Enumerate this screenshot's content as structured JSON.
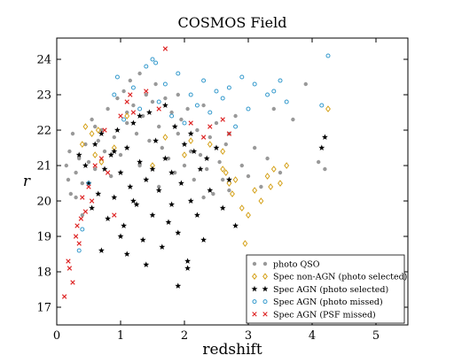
{
  "chart_data": {
    "type": "scatter",
    "title": "COSMOS Field",
    "xlabel": "redshift",
    "ylabel": "r",
    "xlim": [
      0,
      5.5
    ],
    "ylim": [
      16.5,
      24.6
    ],
    "xticks": [
      "0",
      "1",
      "2",
      "3",
      "4",
      "5"
    ],
    "yticks": [
      "17",
      "18",
      "19",
      "20",
      "21",
      "22",
      "23",
      "24"
    ],
    "grid": false,
    "legend_position": "bottom-right",
    "series": [
      {
        "name": "photo QSO",
        "marker": "dot",
        "color": "#999999",
        "points": [
          [
            0.15,
            21.0
          ],
          [
            0.18,
            20.6
          ],
          [
            0.2,
            21.4
          ],
          [
            0.22,
            20.2
          ],
          [
            0.25,
            21.9
          ],
          [
            0.3,
            20.8
          ],
          [
            0.35,
            21.2
          ],
          [
            0.4,
            20.5
          ],
          [
            0.45,
            21.6
          ],
          [
            0.5,
            21.1
          ],
          [
            0.55,
            22.3
          ],
          [
            0.6,
            20.9
          ],
          [
            0.65,
            21.7
          ],
          [
            0.7,
            22.0
          ],
          [
            0.75,
            21.4
          ],
          [
            0.8,
            22.6
          ],
          [
            0.85,
            20.7
          ],
          [
            0.9,
            21.8
          ],
          [
            0.95,
            22.9
          ],
          [
            1.0,
            21.3
          ],
          [
            1.05,
            23.1
          ],
          [
            1.1,
            22.2
          ],
          [
            1.15,
            23.4
          ],
          [
            1.2,
            22.7
          ],
          [
            1.25,
            21.9
          ],
          [
            1.3,
            23.6
          ],
          [
            1.35,
            22.4
          ],
          [
            1.4,
            23.0
          ],
          [
            1.45,
            21.7
          ],
          [
            1.5,
            22.8
          ],
          [
            1.55,
            23.3
          ],
          [
            1.6,
            22.1
          ],
          [
            1.65,
            21.5
          ],
          [
            1.7,
            22.9
          ],
          [
            1.75,
            21.2
          ],
          [
            1.8,
            22.5
          ],
          [
            1.85,
            20.8
          ],
          [
            1.9,
            21.9
          ],
          [
            1.95,
            22.3
          ],
          [
            2.0,
            21.0
          ],
          [
            2.05,
            22.6
          ],
          [
            2.1,
            21.4
          ],
          [
            2.15,
            20.6
          ],
          [
            2.2,
            22.0
          ],
          [
            2.25,
            21.3
          ],
          [
            2.3,
            22.7
          ],
          [
            2.35,
            20.9
          ],
          [
            2.4,
            21.8
          ],
          [
            2.45,
            20.2
          ],
          [
            2.5,
            22.2
          ],
          [
            2.55,
            21.1
          ],
          [
            2.6,
            20.6
          ],
          [
            2.65,
            21.6
          ],
          [
            2.7,
            20.3
          ],
          [
            2.8,
            22.4
          ],
          [
            2.9,
            21.0
          ],
          [
            3.0,
            20.7
          ],
          [
            3.1,
            21.5
          ],
          [
            3.2,
            20.4
          ],
          [
            3.3,
            21.2
          ],
          [
            3.5,
            20.8
          ],
          [
            3.7,
            22.3
          ],
          [
            3.9,
            23.3
          ],
          [
            4.1,
            21.1
          ],
          [
            4.2,
            20.9
          ],
          [
            0.3,
            20.1
          ],
          [
            0.4,
            19.6
          ],
          [
            0.6,
            22.1
          ],
          [
            1.1,
            22.5
          ],
          [
            1.3,
            21.0
          ],
          [
            1.6,
            20.4
          ],
          [
            1.9,
            23.0
          ],
          [
            2.3,
            20.1
          ],
          [
            2.7,
            21.9
          ],
          [
            3.4,
            22.6
          ]
        ]
      },
      {
        "name": "Spec non-AGN (photo selected)",
        "marker": "diamond",
        "color": "#d4a017",
        "points": [
          [
            0.4,
            21.6
          ],
          [
            0.45,
            22.1
          ],
          [
            0.55,
            21.9
          ],
          [
            0.6,
            21.3
          ],
          [
            0.65,
            22.0
          ],
          [
            0.7,
            21.1
          ],
          [
            0.9,
            21.5
          ],
          [
            1.1,
            22.4
          ],
          [
            1.5,
            21.0
          ],
          [
            1.7,
            21.8
          ],
          [
            2.0,
            21.3
          ],
          [
            2.1,
            21.7
          ],
          [
            2.4,
            21.6
          ],
          [
            2.6,
            21.4
          ],
          [
            2.6,
            20.9
          ],
          [
            2.65,
            20.8
          ],
          [
            2.7,
            20.5
          ],
          [
            2.75,
            20.2
          ],
          [
            2.8,
            20.6
          ],
          [
            2.9,
            19.8
          ],
          [
            2.95,
            18.8
          ],
          [
            3.0,
            19.6
          ],
          [
            3.1,
            20.3
          ],
          [
            3.2,
            20.0
          ],
          [
            3.3,
            20.7
          ],
          [
            3.35,
            20.4
          ],
          [
            3.4,
            20.9
          ],
          [
            3.5,
            20.5
          ],
          [
            3.6,
            21.0
          ],
          [
            4.25,
            22.6
          ]
        ]
      },
      {
        "name": "Spec AGN (photo selected)",
        "marker": "star",
        "color": "#000000",
        "points": [
          [
            0.35,
            21.3
          ],
          [
            0.45,
            21.0
          ],
          [
            0.5,
            20.5
          ],
          [
            0.55,
            19.8
          ],
          [
            0.6,
            21.6
          ],
          [
            0.65,
            20.2
          ],
          [
            0.7,
            21.9
          ],
          [
            0.75,
            20.9
          ],
          [
            0.8,
            19.5
          ],
          [
            0.85,
            21.3
          ],
          [
            0.9,
            20.1
          ],
          [
            0.95,
            22.0
          ],
          [
            1.0,
            20.8
          ],
          [
            1.05,
            19.3
          ],
          [
            1.1,
            21.5
          ],
          [
            1.1,
            18.5
          ],
          [
            1.15,
            20.4
          ],
          [
            1.2,
            22.2
          ],
          [
            1.25,
            19.9
          ],
          [
            1.3,
            21.1
          ],
          [
            1.35,
            18.9
          ],
          [
            1.4,
            20.6
          ],
          [
            1.45,
            22.5
          ],
          [
            1.5,
            19.6
          ],
          [
            1.55,
            21.7
          ],
          [
            1.6,
            20.3
          ],
          [
            1.65,
            18.7
          ],
          [
            1.7,
            21.2
          ],
          [
            1.75,
            19.4
          ],
          [
            1.8,
            20.8
          ],
          [
            1.85,
            22.1
          ],
          [
            1.9,
            19.1
          ],
          [
            1.95,
            20.5
          ],
          [
            2.0,
            21.6
          ],
          [
            2.05,
            18.3
          ],
          [
            2.1,
            20.0
          ],
          [
            2.15,
            21.4
          ],
          [
            2.2,
            19.6
          ],
          [
            2.25,
            20.9
          ],
          [
            2.3,
            18.9
          ],
          [
            2.4,
            20.3
          ],
          [
            2.5,
            21.5
          ],
          [
            2.6,
            19.8
          ],
          [
            2.7,
            20.6
          ],
          [
            2.8,
            19.3
          ],
          [
            0.9,
            21.4
          ],
          [
            1.2,
            20.0
          ],
          [
            1.5,
            20.9
          ],
          [
            1.8,
            19.9
          ],
          [
            2.1,
            21.9
          ],
          [
            1.3,
            22.4
          ],
          [
            1.7,
            22.7
          ],
          [
            1.4,
            18.2
          ],
          [
            1.9,
            17.6
          ],
          [
            2.05,
            18.1
          ],
          [
            0.7,
            18.6
          ],
          [
            4.15,
            21.5
          ],
          [
            4.2,
            21.8
          ],
          [
            2.35,
            21.2
          ],
          [
            1.0,
            19.0
          ]
        ]
      },
      {
        "name": "Spec AGN (photo missed)",
        "marker": "circle",
        "color": "#3399cc",
        "points": [
          [
            0.35,
            18.6
          ],
          [
            0.4,
            19.2
          ],
          [
            0.5,
            20.5
          ],
          [
            0.9,
            23.0
          ],
          [
            0.95,
            23.5
          ],
          [
            1.05,
            22.3
          ],
          [
            1.2,
            23.2
          ],
          [
            1.3,
            22.6
          ],
          [
            1.4,
            23.8
          ],
          [
            1.5,
            24.0
          ],
          [
            1.55,
            23.9
          ],
          [
            1.6,
            22.8
          ],
          [
            1.7,
            23.3
          ],
          [
            1.8,
            22.4
          ],
          [
            1.9,
            23.6
          ],
          [
            2.0,
            22.2
          ],
          [
            2.1,
            23.0
          ],
          [
            2.2,
            22.7
          ],
          [
            2.3,
            23.4
          ],
          [
            2.4,
            22.5
          ],
          [
            2.5,
            23.1
          ],
          [
            2.6,
            22.9
          ],
          [
            2.7,
            23.2
          ],
          [
            2.8,
            22.1
          ],
          [
            2.9,
            23.5
          ],
          [
            3.0,
            22.6
          ],
          [
            3.1,
            23.3
          ],
          [
            3.3,
            23.0
          ],
          [
            3.4,
            23.1
          ],
          [
            3.5,
            23.4
          ],
          [
            3.6,
            22.8
          ],
          [
            4.15,
            22.7
          ],
          [
            4.25,
            24.1
          ]
        ]
      },
      {
        "name": "Spec AGN (PSF missed)",
        "marker": "x",
        "color": "#dd2222",
        "points": [
          [
            0.12,
            17.3
          ],
          [
            0.18,
            18.3
          ],
          [
            0.2,
            18.1
          ],
          [
            0.25,
            17.7
          ],
          [
            0.3,
            19.0
          ],
          [
            0.32,
            19.3
          ],
          [
            0.35,
            18.8
          ],
          [
            0.38,
            19.5
          ],
          [
            0.4,
            20.1
          ],
          [
            0.45,
            19.7
          ],
          [
            0.5,
            20.4
          ],
          [
            0.55,
            20.0
          ],
          [
            0.6,
            21.0
          ],
          [
            0.7,
            21.2
          ],
          [
            0.75,
            22.0
          ],
          [
            0.8,
            20.8
          ],
          [
            0.9,
            19.6
          ],
          [
            1.0,
            22.4
          ],
          [
            1.1,
            22.8
          ],
          [
            1.15,
            23.0
          ],
          [
            1.2,
            22.5
          ],
          [
            1.4,
            23.1
          ],
          [
            1.6,
            22.6
          ],
          [
            1.7,
            24.3
          ],
          [
            2.1,
            22.2
          ],
          [
            2.3,
            21.8
          ],
          [
            2.4,
            22.1
          ],
          [
            2.6,
            22.3
          ],
          [
            2.7,
            21.9
          ]
        ]
      }
    ]
  }
}
